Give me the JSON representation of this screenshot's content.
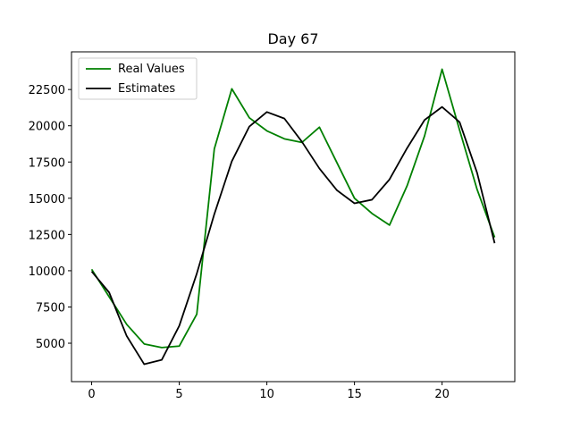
{
  "chart_data": {
    "type": "line",
    "title": "Day 67",
    "xlabel": "",
    "ylabel": "",
    "x": [
      0,
      1,
      2,
      3,
      4,
      5,
      6,
      7,
      8,
      9,
      10,
      11,
      12,
      13,
      14,
      15,
      16,
      17,
      18,
      19,
      20,
      21,
      22,
      23
    ],
    "xlim": [
      -1.15,
      24.15
    ],
    "ylim": [
      2350,
      25100
    ],
    "xticks": [
      0,
      5,
      10,
      15,
      20
    ],
    "yticks": [
      5000,
      7500,
      10000,
      12500,
      15000,
      17500,
      20000,
      22500
    ],
    "grid": false,
    "legend": "top-left",
    "series": [
      {
        "name": "Real Values",
        "color": "#008000",
        "values": [
          10100,
          8200,
          6300,
          4950,
          4700,
          4800,
          7000,
          18400,
          22550,
          20550,
          19650,
          19100,
          18850,
          19900,
          17450,
          15000,
          13950,
          13150,
          15850,
          19300,
          23900,
          19700,
          15600,
          12300
        ]
      },
      {
        "name": "Estimates",
        "color": "#000000",
        "values": [
          9950,
          8500,
          5500,
          3550,
          3850,
          6200,
          9800,
          13900,
          17550,
          19950,
          20950,
          20500,
          18900,
          17050,
          15550,
          14650,
          14900,
          16300,
          18450,
          20400,
          21300,
          20250,
          16750,
          11900
        ]
      }
    ]
  }
}
